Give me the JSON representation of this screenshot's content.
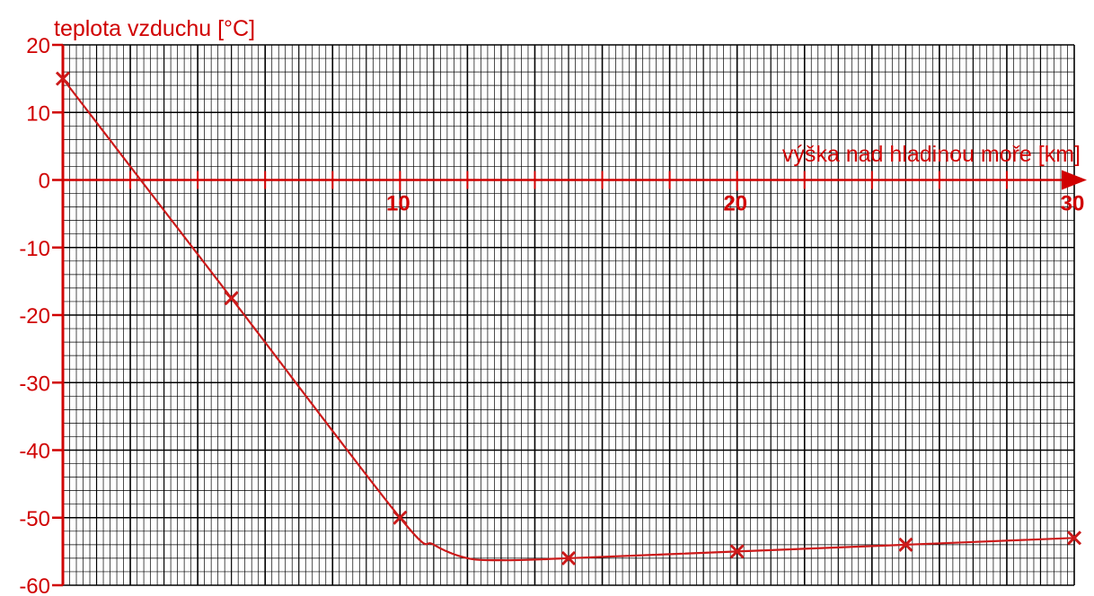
{
  "chart_data": {
    "type": "line",
    "title": "",
    "xlabel": "výška nad hladinou moře [km]",
    "ylabel": "teplota vzduchu [°C]",
    "xlim": [
      0,
      30
    ],
    "ylim": [
      -60,
      20
    ],
    "x_ticks": [
      10,
      20,
      30
    ],
    "y_ticks": [
      20,
      10,
      0,
      -10,
      -20,
      -30,
      -40,
      -50,
      -60
    ],
    "grid": true,
    "series": [
      {
        "markers": "x",
        "points": [
          {
            "x": 0,
            "y": 15
          },
          {
            "x": 5,
            "y": -17.5
          },
          {
            "x": 10,
            "y": -50
          },
          {
            "x": 15,
            "y": -56
          },
          {
            "x": 20,
            "y": -55
          },
          {
            "x": 25,
            "y": -54
          },
          {
            "x": 30,
            "y": -53
          }
        ],
        "curve_through": [
          {
            "x": 11,
            "y": -54
          },
          {
            "x": 12,
            "y": -56
          },
          {
            "x": 13,
            "y": -56.3
          },
          {
            "x": 14,
            "y": -56.2
          }
        ]
      }
    ],
    "colors": {
      "axis": "#d00000",
      "series": "#cc1a1a",
      "grid": "#000000"
    }
  }
}
